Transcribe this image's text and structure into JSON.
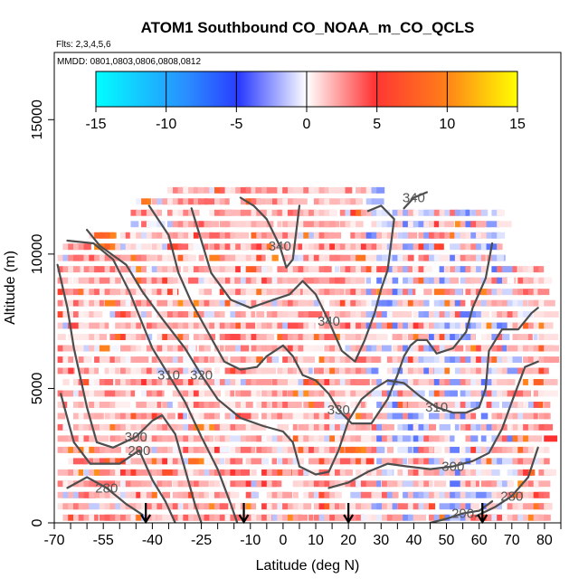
{
  "chart_data": {
    "type": "heatmap",
    "title": "ATOM1 Southbound CO_NOAA_m_CO_QCLS",
    "flights_label": "Flts: 2,3,4,5,6",
    "dates_label": "MMDD: 0801,0803,0806,0808,0812",
    "xlabel": "Latitude (deg N)",
    "ylabel": "Altitude (m)",
    "xlim": [
      -70,
      85
    ],
    "ylim": [
      0,
      17500
    ],
    "x_ticks": [
      -70,
      -55,
      -40,
      -25,
      -10,
      0,
      10,
      20,
      30,
      40,
      50,
      60,
      70,
      80
    ],
    "y_ticks": [
      0,
      5000,
      10000,
      15000
    ],
    "colorbar": {
      "range": [
        -15,
        15
      ],
      "ticks": [
        -15,
        -10,
        -5,
        0,
        5,
        10,
        15
      ],
      "colors": [
        "#00ffff",
        "#2a4bff",
        "#ffffff",
        "#ff3030",
        "#ffff00"
      ]
    },
    "contours": [
      {
        "label": "280",
        "points": [
          [
            -66,
            1300
          ],
          [
            -60,
            1700
          ],
          [
            -54,
            1300
          ],
          [
            -48,
            700
          ],
          [
            -43,
            300
          ]
        ]
      },
      {
        "label": "280",
        "points": [
          [
            59,
            250
          ],
          [
            65,
            600
          ],
          [
            70,
            1000
          ],
          [
            75,
            1700
          ],
          [
            78,
            2800
          ]
        ]
      },
      {
        "label": "290",
        "points": [
          [
            -68,
            4800
          ],
          [
            -64,
            3000
          ],
          [
            -59,
            2200
          ],
          [
            -50,
            2200
          ],
          [
            -44,
            2700
          ],
          [
            -40,
            1600
          ],
          [
            -36,
            800
          ],
          [
            -33,
            0
          ]
        ]
      },
      {
        "label": "290",
        "points": [
          [
            45,
            0
          ],
          [
            50,
            150
          ],
          [
            55,
            350
          ],
          [
            60,
            450
          ],
          [
            64,
            800
          ]
        ]
      },
      {
        "label": "300",
        "points": [
          [
            -69,
            9600
          ],
          [
            -66,
            8000
          ],
          [
            -64,
            6500
          ],
          [
            -60,
            4300
          ],
          [
            -57,
            3000
          ],
          [
            -52,
            2800
          ],
          [
            -45,
            3200
          ],
          [
            -40,
            3800
          ],
          [
            -37,
            4000
          ],
          [
            -33,
            3300
          ],
          [
            -30,
            2000
          ],
          [
            -27,
            700
          ],
          [
            -25,
            0
          ]
        ]
      },
      {
        "label": "300",
        "points": [
          [
            14,
            1300
          ],
          [
            20,
            1500
          ],
          [
            26,
            1900
          ],
          [
            32,
            2200
          ],
          [
            38,
            2100
          ],
          [
            45,
            2000
          ],
          [
            52,
            2100
          ],
          [
            58,
            2300
          ],
          [
            63,
            2600
          ],
          [
            67,
            3500
          ],
          [
            70,
            4500
          ],
          [
            74,
            5800
          ],
          [
            78,
            6000
          ]
        ]
      },
      {
        "label": "310",
        "points": [
          [
            -66,
            10500
          ],
          [
            -58,
            10400
          ],
          [
            -52,
            9800
          ],
          [
            -47,
            8600
          ],
          [
            -43,
            7400
          ],
          [
            -40,
            6500
          ],
          [
            -35,
            5500
          ],
          [
            -30,
            4500
          ],
          [
            -25,
            3200
          ],
          [
            -20,
            2000
          ],
          [
            -16,
            700
          ],
          [
            -14,
            0
          ]
        ]
      },
      {
        "label": "310",
        "points": [
          [
            5,
            2100
          ],
          [
            10,
            1800
          ],
          [
            14,
            1900
          ],
          [
            17,
            2700
          ],
          [
            20,
            3800
          ],
          [
            24,
            4600
          ],
          [
            28,
            5000
          ],
          [
            32,
            5300
          ],
          [
            37,
            5200
          ],
          [
            42,
            4700
          ],
          [
            47,
            4300
          ],
          [
            52,
            4100
          ],
          [
            56,
            4100
          ],
          [
            60,
            4300
          ],
          [
            62,
            5000
          ],
          [
            63,
            6400
          ],
          [
            67,
            7200
          ],
          [
            72,
            7200
          ],
          [
            76,
            7800
          ],
          [
            78,
            8000
          ]
        ]
      },
      {
        "label": "320",
        "points": [
          [
            -60,
            10900
          ],
          [
            -56,
            10300
          ],
          [
            -48,
            9600
          ],
          [
            -43,
            8600
          ],
          [
            -37,
            7600
          ],
          [
            -30,
            6500
          ],
          [
            -25,
            5500
          ],
          [
            -20,
            4600
          ],
          [
            -13,
            3900
          ],
          [
            -6,
            3600
          ],
          [
            0,
            3400
          ],
          [
            3,
            3000
          ],
          [
            5,
            2100
          ]
        ]
      },
      {
        "label": "330",
        "points": [
          [
            -41,
            11800
          ],
          [
            -35,
            10700
          ],
          [
            -32,
            9300
          ],
          [
            -28,
            8200
          ],
          [
            -23,
            7100
          ],
          [
            -18,
            6000
          ],
          [
            -13,
            5700
          ],
          [
            -8,
            5800
          ],
          [
            -5,
            6200
          ],
          [
            0,
            6600
          ],
          [
            3,
            6200
          ],
          [
            6,
            5500
          ],
          [
            10,
            5300
          ],
          [
            14,
            4800
          ],
          [
            17,
            4200
          ],
          [
            21,
            3700
          ],
          [
            27,
            3700
          ],
          [
            32,
            4600
          ],
          [
            35,
            5500
          ],
          [
            37,
            6200
          ],
          [
            39,
            6600
          ],
          [
            41,
            6800
          ],
          [
            44,
            6800
          ],
          [
            47,
            6300
          ],
          [
            52,
            6500
          ],
          [
            56,
            7100
          ],
          [
            58,
            8000
          ],
          [
            62,
            9100
          ],
          [
            64,
            10400
          ]
        ]
      },
      {
        "label": "340",
        "points": [
          [
            -28,
            11700
          ],
          [
            -25,
            10500
          ],
          [
            -22,
            9300
          ],
          [
            -16,
            8300
          ],
          [
            -10,
            8000
          ],
          [
            -3,
            8300
          ],
          [
            2,
            8500
          ],
          [
            6,
            9000
          ],
          [
            10,
            8500
          ],
          [
            14,
            7500
          ],
          [
            18,
            6400
          ],
          [
            22,
            6000
          ],
          [
            25,
            6800
          ],
          [
            28,
            7800
          ],
          [
            30,
            8700
          ],
          [
            32,
            9400
          ],
          [
            34,
            11300
          ],
          [
            30,
            11800
          ],
          [
            26,
            11600
          ]
        ]
      },
      {
        "label": "340",
        "points": [
          [
            -13,
            12100
          ],
          [
            -9,
            11800
          ],
          [
            -5,
            11300
          ],
          [
            -1,
            10300
          ],
          [
            1,
            9500
          ],
          [
            3,
            9800
          ],
          [
            5,
            11800
          ]
        ]
      },
      {
        "label": "340",
        "points": [
          [
            37,
            11700
          ],
          [
            40,
            12100
          ],
          [
            44,
            12300
          ]
        ]
      }
    ],
    "flight_arrows": [
      -42,
      -12,
      20,
      61
    ]
  }
}
